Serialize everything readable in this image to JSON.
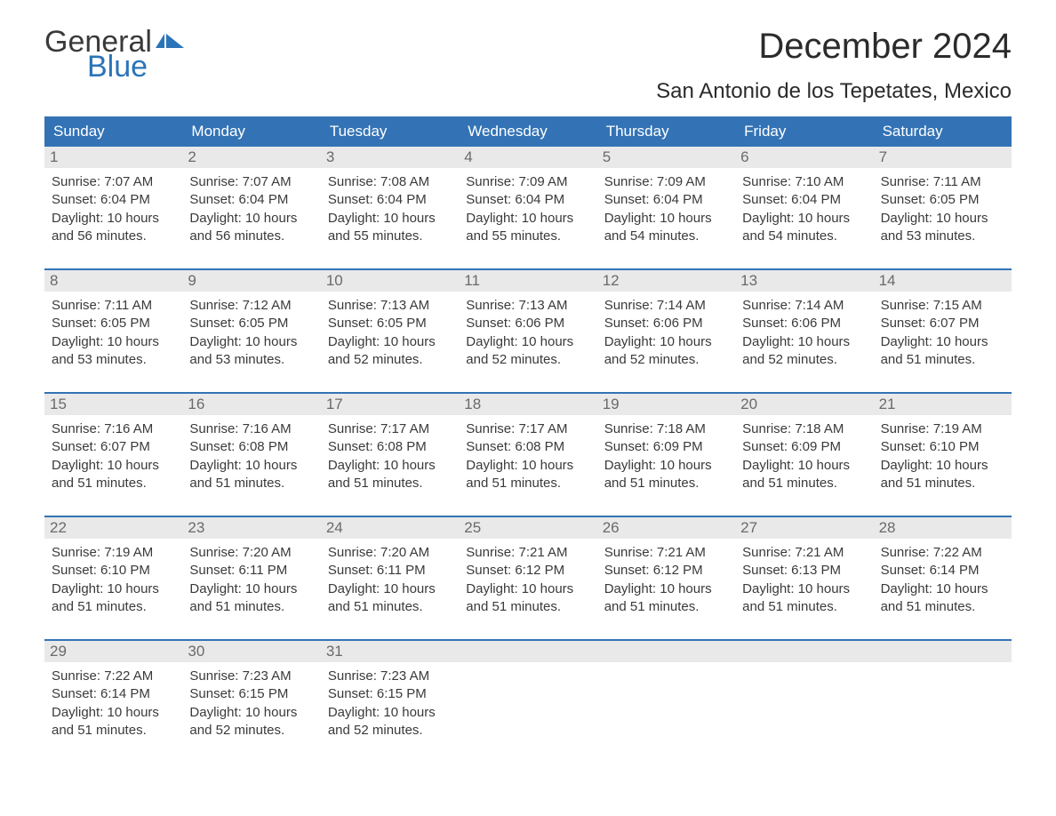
{
  "brand": {
    "word1": "General",
    "word2": "Blue",
    "word1_color": "#3a3a3a",
    "word2_color": "#2b74b8",
    "shape_color": "#2b74b8"
  },
  "header": {
    "month_title": "December 2024",
    "location": "San Antonio de los Tepetates, Mexico",
    "title_color": "#2b2b2b"
  },
  "calendar": {
    "header_bg": "#3373b5",
    "header_fg": "#ffffff",
    "daynum_bg": "#e9e9e9",
    "daynum_fg": "#6a6a6a",
    "week_border": "#3373b5",
    "text_color": "#3a3a3a",
    "day_names": [
      "Sunday",
      "Monday",
      "Tuesday",
      "Wednesday",
      "Thursday",
      "Friday",
      "Saturday"
    ],
    "weeks": [
      {
        "nums": [
          "1",
          "2",
          "3",
          "4",
          "5",
          "6",
          "7"
        ],
        "cells": [
          {
            "sunrise": "Sunrise: 7:07 AM",
            "sunset": "Sunset: 6:04 PM",
            "d1": "Daylight: 10 hours",
            "d2": "and 56 minutes."
          },
          {
            "sunrise": "Sunrise: 7:07 AM",
            "sunset": "Sunset: 6:04 PM",
            "d1": "Daylight: 10 hours",
            "d2": "and 56 minutes."
          },
          {
            "sunrise": "Sunrise: 7:08 AM",
            "sunset": "Sunset: 6:04 PM",
            "d1": "Daylight: 10 hours",
            "d2": "and 55 minutes."
          },
          {
            "sunrise": "Sunrise: 7:09 AM",
            "sunset": "Sunset: 6:04 PM",
            "d1": "Daylight: 10 hours",
            "d2": "and 55 minutes."
          },
          {
            "sunrise": "Sunrise: 7:09 AM",
            "sunset": "Sunset: 6:04 PM",
            "d1": "Daylight: 10 hours",
            "d2": "and 54 minutes."
          },
          {
            "sunrise": "Sunrise: 7:10 AM",
            "sunset": "Sunset: 6:04 PM",
            "d1": "Daylight: 10 hours",
            "d2": "and 54 minutes."
          },
          {
            "sunrise": "Sunrise: 7:11 AM",
            "sunset": "Sunset: 6:05 PM",
            "d1": "Daylight: 10 hours",
            "d2": "and 53 minutes."
          }
        ]
      },
      {
        "nums": [
          "8",
          "9",
          "10",
          "11",
          "12",
          "13",
          "14"
        ],
        "cells": [
          {
            "sunrise": "Sunrise: 7:11 AM",
            "sunset": "Sunset: 6:05 PM",
            "d1": "Daylight: 10 hours",
            "d2": "and 53 minutes."
          },
          {
            "sunrise": "Sunrise: 7:12 AM",
            "sunset": "Sunset: 6:05 PM",
            "d1": "Daylight: 10 hours",
            "d2": "and 53 minutes."
          },
          {
            "sunrise": "Sunrise: 7:13 AM",
            "sunset": "Sunset: 6:05 PM",
            "d1": "Daylight: 10 hours",
            "d2": "and 52 minutes."
          },
          {
            "sunrise": "Sunrise: 7:13 AM",
            "sunset": "Sunset: 6:06 PM",
            "d1": "Daylight: 10 hours",
            "d2": "and 52 minutes."
          },
          {
            "sunrise": "Sunrise: 7:14 AM",
            "sunset": "Sunset: 6:06 PM",
            "d1": "Daylight: 10 hours",
            "d2": "and 52 minutes."
          },
          {
            "sunrise": "Sunrise: 7:14 AM",
            "sunset": "Sunset: 6:06 PM",
            "d1": "Daylight: 10 hours",
            "d2": "and 52 minutes."
          },
          {
            "sunrise": "Sunrise: 7:15 AM",
            "sunset": "Sunset: 6:07 PM",
            "d1": "Daylight: 10 hours",
            "d2": "and 51 minutes."
          }
        ]
      },
      {
        "nums": [
          "15",
          "16",
          "17",
          "18",
          "19",
          "20",
          "21"
        ],
        "cells": [
          {
            "sunrise": "Sunrise: 7:16 AM",
            "sunset": "Sunset: 6:07 PM",
            "d1": "Daylight: 10 hours",
            "d2": "and 51 minutes."
          },
          {
            "sunrise": "Sunrise: 7:16 AM",
            "sunset": "Sunset: 6:08 PM",
            "d1": "Daylight: 10 hours",
            "d2": "and 51 minutes."
          },
          {
            "sunrise": "Sunrise: 7:17 AM",
            "sunset": "Sunset: 6:08 PM",
            "d1": "Daylight: 10 hours",
            "d2": "and 51 minutes."
          },
          {
            "sunrise": "Sunrise: 7:17 AM",
            "sunset": "Sunset: 6:08 PM",
            "d1": "Daylight: 10 hours",
            "d2": "and 51 minutes."
          },
          {
            "sunrise": "Sunrise: 7:18 AM",
            "sunset": "Sunset: 6:09 PM",
            "d1": "Daylight: 10 hours",
            "d2": "and 51 minutes."
          },
          {
            "sunrise": "Sunrise: 7:18 AM",
            "sunset": "Sunset: 6:09 PM",
            "d1": "Daylight: 10 hours",
            "d2": "and 51 minutes."
          },
          {
            "sunrise": "Sunrise: 7:19 AM",
            "sunset": "Sunset: 6:10 PM",
            "d1": "Daylight: 10 hours",
            "d2": "and 51 minutes."
          }
        ]
      },
      {
        "nums": [
          "22",
          "23",
          "24",
          "25",
          "26",
          "27",
          "28"
        ],
        "cells": [
          {
            "sunrise": "Sunrise: 7:19 AM",
            "sunset": "Sunset: 6:10 PM",
            "d1": "Daylight: 10 hours",
            "d2": "and 51 minutes."
          },
          {
            "sunrise": "Sunrise: 7:20 AM",
            "sunset": "Sunset: 6:11 PM",
            "d1": "Daylight: 10 hours",
            "d2": "and 51 minutes."
          },
          {
            "sunrise": "Sunrise: 7:20 AM",
            "sunset": "Sunset: 6:11 PM",
            "d1": "Daylight: 10 hours",
            "d2": "and 51 minutes."
          },
          {
            "sunrise": "Sunrise: 7:21 AM",
            "sunset": "Sunset: 6:12 PM",
            "d1": "Daylight: 10 hours",
            "d2": "and 51 minutes."
          },
          {
            "sunrise": "Sunrise: 7:21 AM",
            "sunset": "Sunset: 6:12 PM",
            "d1": "Daylight: 10 hours",
            "d2": "and 51 minutes."
          },
          {
            "sunrise": "Sunrise: 7:21 AM",
            "sunset": "Sunset: 6:13 PM",
            "d1": "Daylight: 10 hours",
            "d2": "and 51 minutes."
          },
          {
            "sunrise": "Sunrise: 7:22 AM",
            "sunset": "Sunset: 6:14 PM",
            "d1": "Daylight: 10 hours",
            "d2": "and 51 minutes."
          }
        ]
      },
      {
        "nums": [
          "29",
          "30",
          "31",
          "",
          "",
          "",
          ""
        ],
        "cells": [
          {
            "sunrise": "Sunrise: 7:22 AM",
            "sunset": "Sunset: 6:14 PM",
            "d1": "Daylight: 10 hours",
            "d2": "and 51 minutes."
          },
          {
            "sunrise": "Sunrise: 7:23 AM",
            "sunset": "Sunset: 6:15 PM",
            "d1": "Daylight: 10 hours",
            "d2": "and 52 minutes."
          },
          {
            "sunrise": "Sunrise: 7:23 AM",
            "sunset": "Sunset: 6:15 PM",
            "d1": "Daylight: 10 hours",
            "d2": "and 52 minutes."
          },
          {
            "empty": true
          },
          {
            "empty": true
          },
          {
            "empty": true
          },
          {
            "empty": true
          }
        ]
      }
    ]
  }
}
